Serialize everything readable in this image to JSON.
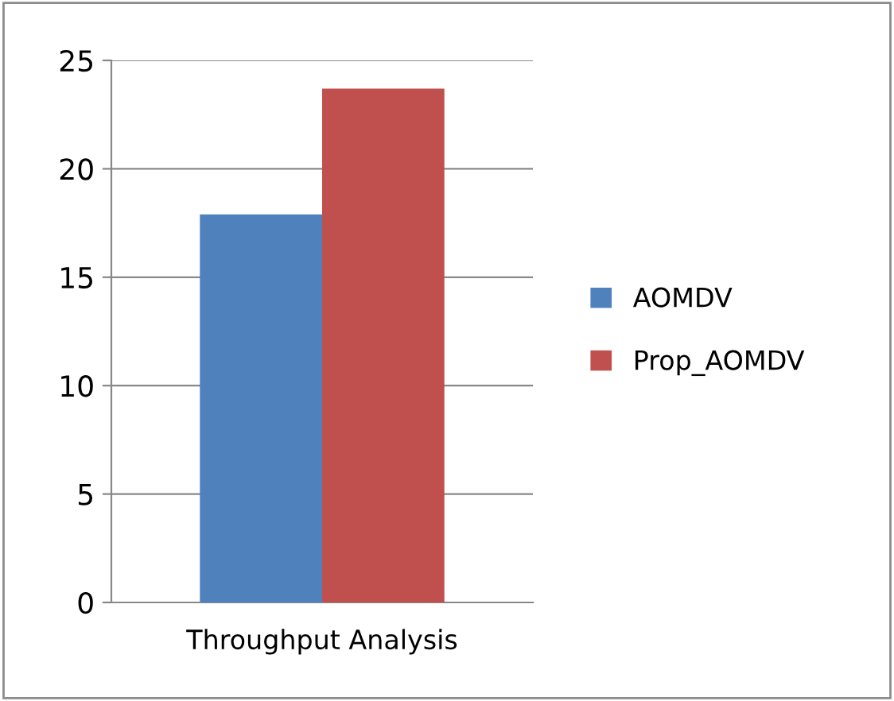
{
  "chart_data": {
    "type": "bar",
    "categories": [
      "Throughput Analysis"
    ],
    "series": [
      {
        "name": "AOMDV",
        "color": "#4f81bd",
        "values": [
          17.9
        ]
      },
      {
        "name": "Prop_AOMDV",
        "color": "#c0504d",
        "values": [
          23.7
        ]
      }
    ],
    "ylim": [
      0,
      25
    ],
    "yticks": [
      0,
      5,
      10,
      15,
      20,
      25
    ],
    "grid": "y",
    "legend": "right"
  }
}
